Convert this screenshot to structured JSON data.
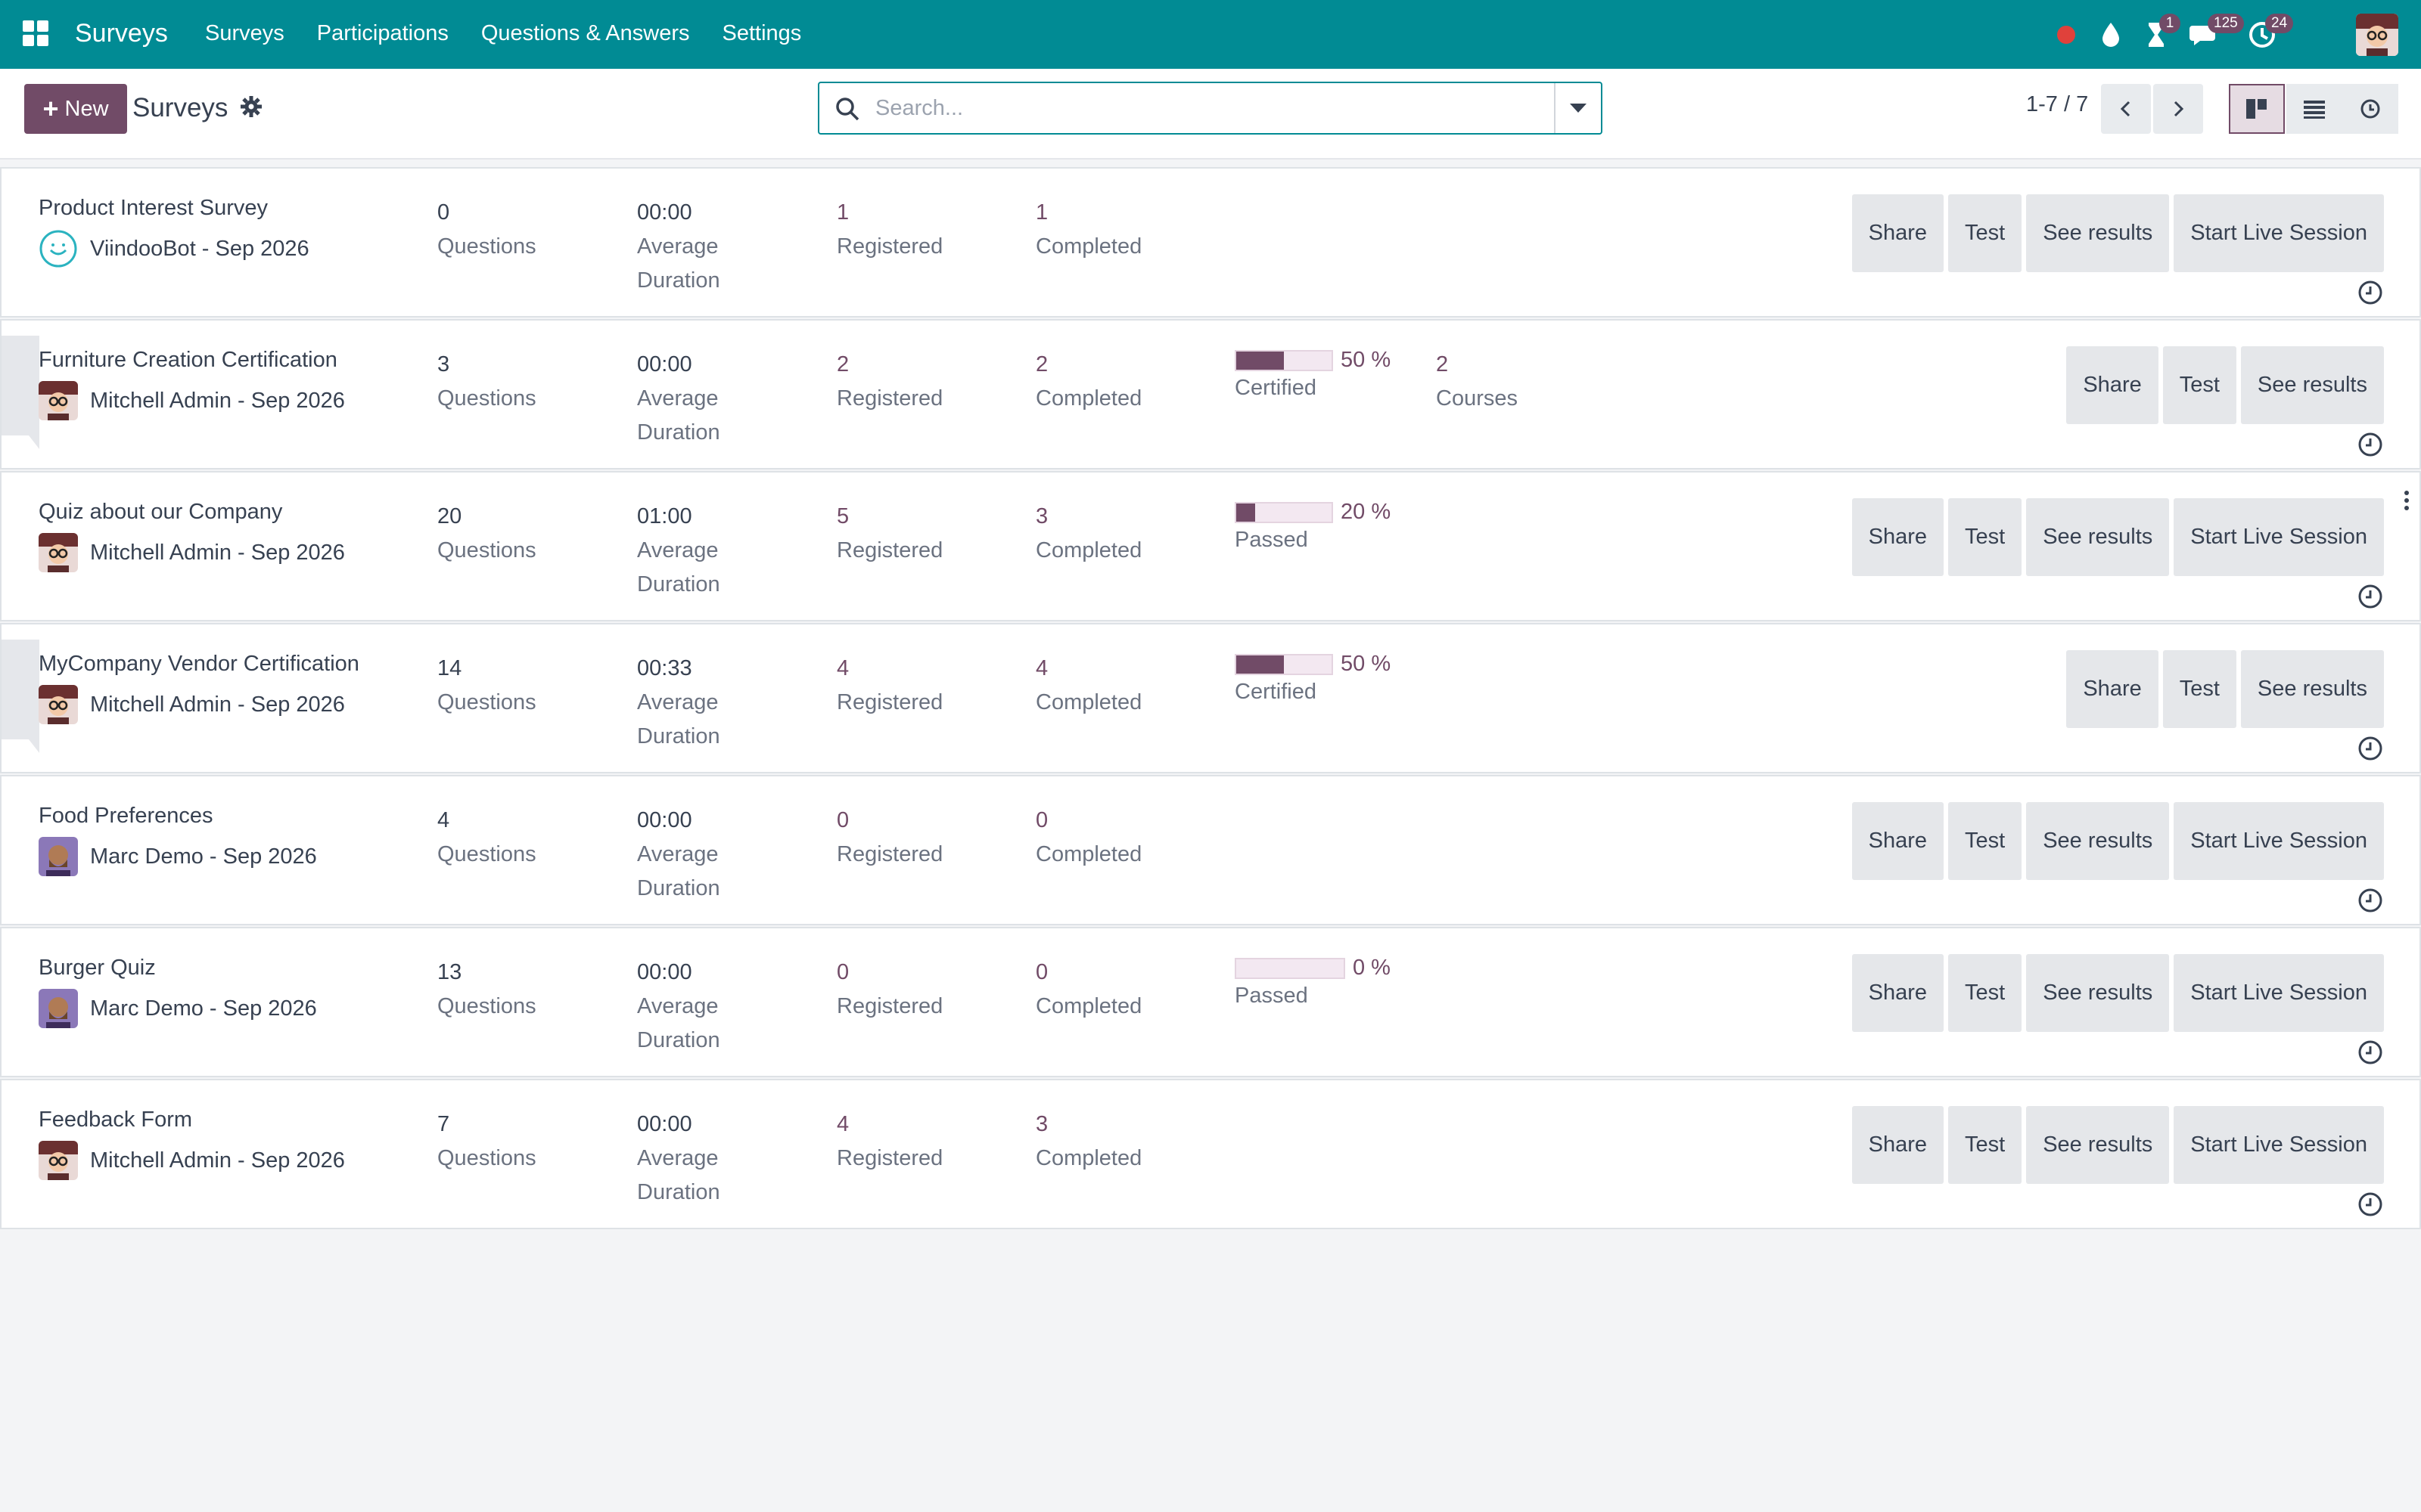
{
  "navbar": {
    "brand": "Surveys",
    "menu": [
      "Surveys",
      "Participations",
      "Questions & Answers",
      "Settings"
    ],
    "badges": {
      "activities": "1",
      "messages": "125",
      "updates": "24"
    }
  },
  "control_panel": {
    "new_label": "New",
    "title": "Surveys",
    "search_placeholder": "Search...",
    "pager": "1-7 / 7"
  },
  "colors": {
    "navbar": "#018b94",
    "accent": "#714b67",
    "row_bg": "#ffffff"
  },
  "rows": [
    {
      "title": "Product Interest Survey",
      "creator": "ViindooBot - Sep 2026",
      "avatar": "bot-avatar",
      "questions": "0",
      "questions_label": "Questions",
      "duration": "00:00",
      "duration_label_1": "Average",
      "duration_label_2": "Duration",
      "registered": "1",
      "registered_label": "Registered",
      "completed": "1",
      "completed_label": "Completed",
      "buttons": [
        "Share",
        "Test",
        "See results",
        "Start Live Session"
      ]
    },
    {
      "title": "Furniture Creation Certification",
      "creator": "Mitchell Admin - Sep 2026",
      "avatar": "admin-avatar",
      "questions": "3",
      "questions_label": "Questions",
      "duration": "00:00",
      "duration_label_1": "Average",
      "duration_label_2": "Duration",
      "registered": "2",
      "registered_label": "Registered",
      "completed": "2",
      "completed_label": "Completed",
      "progress": 50,
      "progress_text": "50 %",
      "progress_label": "Certified",
      "courses": "2",
      "courses_label": "Courses",
      "buttons": [
        "Share",
        "Test",
        "See results"
      ]
    },
    {
      "title": "Quiz about our Company",
      "creator": "Mitchell Admin - Sep 2026",
      "avatar": "admin-avatar",
      "questions": "20",
      "questions_label": "Questions",
      "duration": "01:00",
      "duration_label_1": "Average",
      "duration_label_2": "Duration",
      "registered": "5",
      "registered_label": "Registered",
      "completed": "3",
      "completed_label": "Completed",
      "progress": 20,
      "progress_text": "20 %",
      "progress_label": "Passed",
      "buttons": [
        "Share",
        "Test",
        "See results",
        "Start Live Session"
      ]
    },
    {
      "title": "MyCompany Vendor Certification",
      "creator": "Mitchell Admin - Sep 2026",
      "avatar": "admin-avatar",
      "questions": "14",
      "questions_label": "Questions",
      "duration": "00:33",
      "duration_label_1": "Average",
      "duration_label_2": "Duration",
      "registered": "4",
      "registered_label": "Registered",
      "completed": "4",
      "completed_label": "Completed",
      "progress": 50,
      "progress_text": "50 %",
      "progress_label": "Certified",
      "buttons": [
        "Share",
        "Test",
        "See results"
      ]
    },
    {
      "title": "Food Preferences",
      "creator": "Marc Demo - Sep 2026",
      "avatar": "demo-avatar",
      "questions": "4",
      "questions_label": "Questions",
      "duration": "00:00",
      "duration_label_1": "Average",
      "duration_label_2": "Duration",
      "registered": "0",
      "registered_label": "Registered",
      "completed": "0",
      "completed_label": "Completed",
      "buttons": [
        "Share",
        "Test",
        "See results",
        "Start Live Session"
      ]
    },
    {
      "title": "Burger Quiz",
      "creator": "Marc Demo - Sep 2026",
      "avatar": "demo-avatar",
      "questions": "13",
      "questions_label": "Questions",
      "duration": "00:00",
      "duration_label_1": "Average",
      "duration_label_2": "Duration",
      "registered": "0",
      "registered_label": "Registered",
      "completed": "0",
      "completed_label": "Completed",
      "progress": 0,
      "progress_text": "0 %",
      "progress_label": "Passed",
      "buttons": [
        "Share",
        "Test",
        "See results",
        "Start Live Session"
      ]
    },
    {
      "title": "Feedback Form",
      "creator": "Mitchell Admin - Sep 2026",
      "avatar": "admin-avatar",
      "questions": "7",
      "questions_label": "Questions",
      "duration": "00:00",
      "duration_label_1": "Average",
      "duration_label_2": "Duration",
      "registered": "4",
      "registered_label": "Registered",
      "completed": "3",
      "completed_label": "Completed",
      "buttons": [
        "Share",
        "Test",
        "See results",
        "Start Live Session"
      ]
    }
  ]
}
